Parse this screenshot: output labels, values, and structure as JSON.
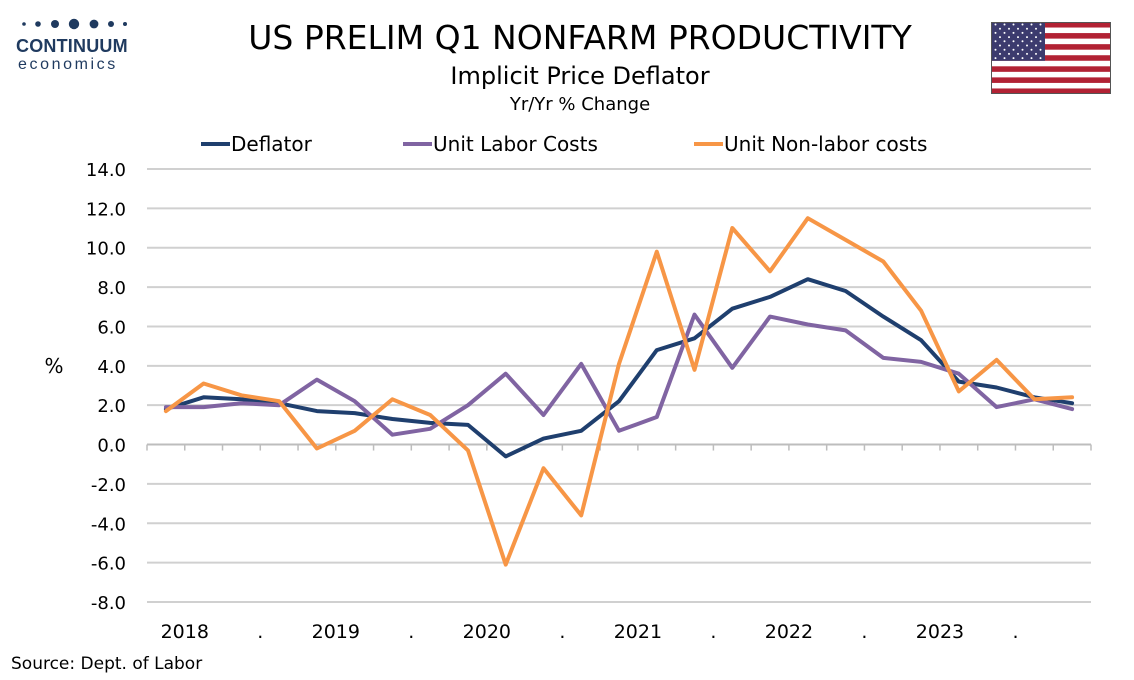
{
  "branding": {
    "logo_top": "CONTINUUM",
    "logo_bottom": "economics",
    "logo_color": "#1f3a5f"
  },
  "flag_icon": "us-flag-icon",
  "chart_data": {
    "type": "line",
    "title": "US PRELIM Q1  NONFARM PRODUCTIVITY",
    "subtitle": "Implicit Price Deflator",
    "subtitle2": "Yr/Yr % Change",
    "ylabel": "%",
    "ylim": [
      -8,
      14
    ],
    "yticks": [
      "14.0",
      "12.0",
      "10.0",
      "8.0",
      "6.0",
      "4.0",
      "2.0",
      "0.0",
      "-2.0",
      "-4.0",
      "-6.0",
      "-8.0"
    ],
    "x_labels": [
      "2018",
      ".",
      "2019",
      ".",
      "2020",
      ".",
      "2021",
      ".",
      "2022",
      ".",
      "2023",
      "."
    ],
    "x": [
      "2018 Q1",
      "2018 Q2",
      "2018 Q3",
      "2018 Q4",
      "2019 Q1",
      "2019 Q2",
      "2019 Q3",
      "2019 Q4",
      "2020 Q1",
      "2020 Q2",
      "2020 Q3",
      "2020 Q4",
      "2021 Q1",
      "2021 Q2",
      "2021 Q3",
      "2021 Q4",
      "2022 Q1",
      "2022 Q2",
      "2022 Q3",
      "2022 Q4",
      "2023 Q1",
      "2023 Q2",
      "2023 Q3",
      "2023 Q4",
      "2024 Q1"
    ],
    "grid": true,
    "legend_position": "top",
    "series": [
      {
        "name": "Deflator",
        "color": "#1f3f6e",
        "values": [
          1.8,
          2.4,
          2.3,
          2.1,
          1.7,
          1.6,
          1.3,
          1.1,
          1.0,
          -0.6,
          0.3,
          0.7,
          2.2,
          4.8,
          5.4,
          6.9,
          7.5,
          8.4,
          7.8,
          6.5,
          5.3,
          3.2,
          2.9,
          2.4,
          2.1
        ]
      },
      {
        "name": "Unit Labor Costs",
        "color": "#8064a2",
        "values": [
          1.9,
          1.9,
          2.1,
          2.0,
          3.3,
          2.2,
          0.5,
          0.8,
          2.0,
          3.6,
          1.5,
          4.1,
          0.7,
          1.4,
          6.6,
          3.9,
          6.5,
          6.1,
          5.8,
          4.4,
          4.2,
          3.6,
          1.9,
          2.3,
          1.8
        ]
      },
      {
        "name": "Unit Non-labor costs",
        "color": "#f79646",
        "values": [
          1.7,
          3.1,
          2.5,
          2.2,
          -0.2,
          0.7,
          2.3,
          1.5,
          -0.3,
          -6.1,
          -1.2,
          -3.6,
          4.1,
          9.8,
          3.8,
          11.0,
          8.8,
          11.5,
          10.4,
          9.3,
          6.8,
          2.7,
          4.3,
          2.3,
          2.4
        ]
      }
    ]
  },
  "source": "Source: Dept. of Labor"
}
